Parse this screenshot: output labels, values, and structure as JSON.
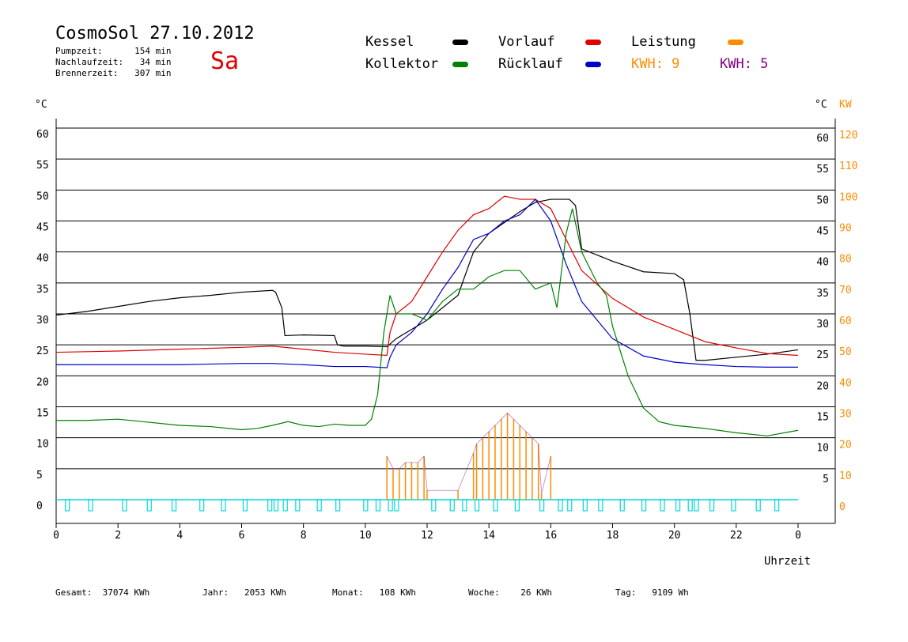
{
  "header": {
    "title": "CosmoSol 27.10.2012",
    "day": "Sa",
    "stats": [
      {
        "label": "Pumpzeit:",
        "value": "154",
        "unit": "min"
      },
      {
        "label": "Nachlaufzeit:",
        "value": "34",
        "unit": "min"
      },
      {
        "label": "Brennerzeit:",
        "value": "307",
        "unit": "min"
      }
    ]
  },
  "legend": {
    "kessel": "Kessel",
    "kollektor": "Kollektor",
    "vorlauf": "Vorlauf",
    "ruecklauf": "Rücklauf",
    "leistung": "Leistung",
    "kwh_orange": "KWH: 9",
    "kwh_purple": "KWH: 5"
  },
  "colors": {
    "kessel": "#000000",
    "kollektor": "#008000",
    "vorlauf": "#e00000",
    "ruecklauf": "#0000c8",
    "leistung": "#ff8c00",
    "kwh_purple": "#800080",
    "pump": "#00d8d8",
    "accent_day": "#e00000"
  },
  "axes": {
    "left_unit": "°C",
    "right_unit": "°C",
    "right_unit2": "KW",
    "xlabel": "Uhrzeit"
  },
  "footer": [
    {
      "label": "Gesamt:",
      "value": "37074 KWh"
    },
    {
      "label": "Jahr:",
      "value": "2053 KWh"
    },
    {
      "label": "Monat:",
      "value": "108 KWh"
    },
    {
      "label": "Woche:",
      "value": "26 KWh"
    },
    {
      "label": "Tag:",
      "value": "9109 Wh"
    }
  ],
  "chart_data": {
    "type": "line",
    "xlabel": "Uhrzeit",
    "ylabel": "°C",
    "y2label": "KW",
    "xlim": [
      0,
      24
    ],
    "ylim": [
      0,
      60
    ],
    "y2lim": [
      0,
      120
    ],
    "x_ticks": [
      "0",
      "2",
      "4",
      "6",
      "8",
      "10",
      "12",
      "14",
      "16",
      "18",
      "20",
      "22",
      "0"
    ],
    "y_left_ticks": [
      "0",
      "5",
      "10",
      "15",
      "20",
      "25",
      "30",
      "35",
      "40",
      "45",
      "50",
      "55",
      "60"
    ],
    "y_right_ticks": [
      "5",
      "10",
      "15",
      "20",
      "25",
      "30",
      "35",
      "40",
      "45",
      "50",
      "55",
      "60"
    ],
    "y2_ticks": [
      "0",
      "10",
      "20",
      "30",
      "40",
      "50",
      "60",
      "70",
      "80",
      "90",
      "100",
      "110",
      "120"
    ],
    "grid": true,
    "legend_position": "top",
    "series": [
      {
        "name": "Kessel",
        "x": [
          0,
          1,
          2,
          3,
          4,
          5,
          6,
          7,
          7.1,
          7.3,
          7.4,
          8,
          9,
          9.1,
          9.3,
          10,
          10.7,
          11,
          12,
          13,
          13.5,
          14,
          15,
          15.5,
          16,
          16.5,
          16.6,
          16.8,
          17,
          17.5,
          18,
          19,
          20,
          20.3,
          20.5,
          20.7,
          21,
          22,
          23,
          24
        ],
        "y": [
          29.8,
          30.4,
          31.2,
          32,
          32.6,
          33,
          33.5,
          33.8,
          33.5,
          31,
          26.5,
          26.6,
          26.5,
          25,
          24.8,
          24.8,
          24.7,
          26,
          29,
          33,
          40,
          43,
          46.5,
          48,
          48.5,
          48.5,
          48.5,
          47.5,
          40.5,
          39.5,
          38.5,
          36.8,
          36.5,
          35.5,
          30,
          22.5,
          22.5,
          23,
          23.5,
          24.2
        ]
      },
      {
        "name": "Vorlauf",
        "x": [
          0,
          2,
          4,
          6,
          7,
          8,
          9,
          10,
          10.7,
          10.8,
          11,
          11.5,
          12,
          12.5,
          13,
          13.5,
          14,
          14.5,
          15,
          15.5,
          16,
          16.5,
          17,
          18,
          19,
          20,
          21,
          22,
          23,
          24
        ],
        "y": [
          23.8,
          24,
          24.3,
          24.6,
          24.8,
          24.3,
          23.8,
          23.5,
          23.3,
          27,
          30,
          32,
          36,
          40,
          43.5,
          46,
          47,
          49,
          48.5,
          48.5,
          47,
          42,
          37,
          32.5,
          29.5,
          27.5,
          25.5,
          24.5,
          23.6,
          23.3
        ]
      },
      {
        "name": "Rücklauf",
        "x": [
          0,
          2,
          4,
          6,
          7,
          8,
          9,
          10,
          10.7,
          10.8,
          11,
          11.5,
          12,
          12.5,
          13,
          13.5,
          14,
          14.5,
          15,
          15.5,
          16,
          16.5,
          17,
          18,
          19,
          20,
          21,
          22,
          23,
          24
        ],
        "y": [
          21.8,
          21.8,
          21.8,
          22,
          22,
          21.8,
          21.5,
          21.5,
          21.3,
          23,
          25,
          27,
          30,
          34,
          37.5,
          42,
          43,
          45,
          46,
          48.5,
          45,
          38,
          32,
          26,
          23.2,
          22.2,
          21.8,
          21.5,
          21.4,
          21.4
        ]
      },
      {
        "name": "Kollektor",
        "x": [
          0,
          1,
          2,
          3,
          4,
          5,
          6,
          6.5,
          7,
          7.5,
          8,
          8.5,
          9,
          9.5,
          10,
          10.2,
          10.4,
          10.6,
          10.8,
          11,
          11.5,
          12,
          12.5,
          13,
          13.5,
          14,
          14.5,
          15,
          15.5,
          16,
          16.2,
          16.5,
          16.7,
          17,
          17.5,
          17.8,
          18,
          18.5,
          19,
          19.5,
          20,
          21,
          22,
          23,
          24
        ],
        "y": [
          12.8,
          12.8,
          13,
          12.5,
          12,
          11.8,
          11.3,
          11.5,
          12,
          12.6,
          12,
          11.8,
          12.2,
          12,
          12,
          13,
          17,
          27,
          33,
          30,
          30,
          29,
          32,
          34,
          34,
          36,
          37,
          37,
          34,
          35,
          31,
          43,
          47,
          40,
          35,
          33,
          28,
          20,
          14.8,
          12.6,
          12,
          11.5,
          10.8,
          10.3,
          11.2
        ]
      },
      {
        "name": "Leistung",
        "x": [
          10.7,
          10.9,
          11.1,
          11.3,
          11.5,
          11.7,
          11.9,
          12,
          13,
          13.5,
          13.6,
          13.8,
          14,
          14.2,
          14.4,
          14.6,
          14.8,
          15,
          15.2,
          15.4,
          15.6,
          15.7,
          16
        ],
        "y2": [
          14,
          10,
          10,
          12,
          12,
          12,
          14,
          3,
          3,
          15,
          18,
          20,
          22,
          24,
          26,
          28,
          26,
          24,
          22,
          20,
          18,
          2,
          14
        ]
      }
    ],
    "pump_markers_hours": [
      0.35,
      1.1,
      2.2,
      3,
      3.8,
      4.7,
      5.4,
      6.1,
      6.9,
      7.1,
      7.4,
      7.8,
      8.5,
      9.1,
      10,
      10.4,
      10.8,
      11,
      12.2,
      12.8,
      13.2,
      13.6,
      14.2,
      14.9,
      15.7,
      16.3,
      16.6,
      17.1,
      17.6,
      18.3,
      19,
      19.6,
      20.1,
      20.5,
      20.7,
      21.2,
      21.9,
      22.7,
      23.3
    ]
  }
}
